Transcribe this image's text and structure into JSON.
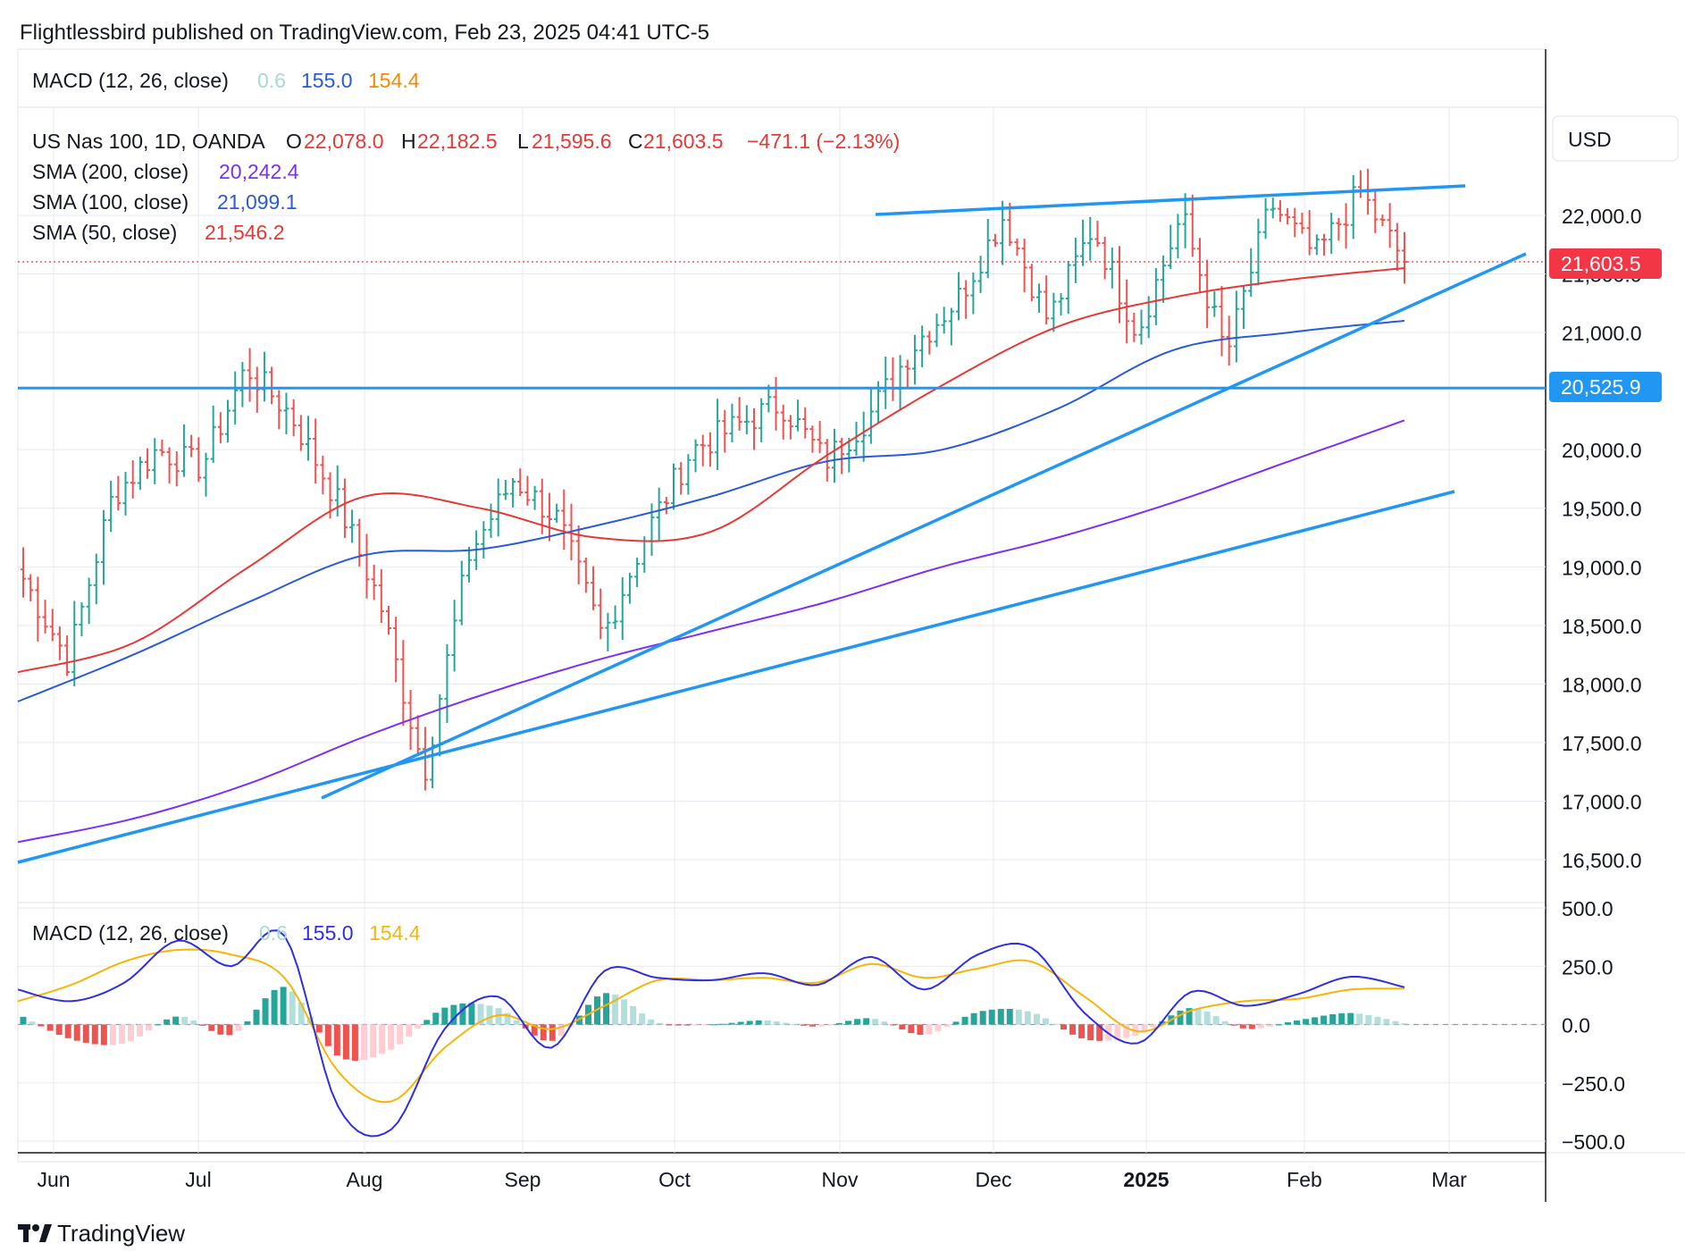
{
  "header": {
    "publisher": "Flightlessbird published on TradingView.com, Feb 23, 2025 04:41 UTC-5"
  },
  "top_macd_label": {
    "name": "MACD (12, 26, close)",
    "hist": "0.6",
    "macd": "155.0",
    "signal": "154.4"
  },
  "legend": {
    "symbol": "US Nas 100, 1D, OANDA",
    "o_label": "O",
    "o_value": "22,078.0",
    "h_label": "H",
    "h_value": "22,182.5",
    "l_label": "L",
    "l_value": "21,595.6",
    "c_label": "C",
    "c_value": "21,603.5",
    "change": "−471.1 (−2.13%)",
    "sma200_name": "SMA (200, close)",
    "sma200_value": "20,242.4",
    "sma100_name": "SMA (100, close)",
    "sma100_value": "21,099.1",
    "sma50_name": "SMA (50, close)",
    "sma50_value": "21,546.2"
  },
  "currency": "USD",
  "price_badge": "21,603.5",
  "level_badge": "20,525.9",
  "macd_label": {
    "name": "MACD (12, 26, close)",
    "hist": "0.6",
    "macd": "155.0",
    "signal": "154.4"
  },
  "footer": {
    "brand": "TradingView"
  },
  "colors": {
    "up": "#26a69a",
    "down": "#ef5350",
    "sma200": "#7b2ff7",
    "sma100": "#2a5ad7",
    "sma50": "#e53935",
    "trend": "#2196f3",
    "macd": "#2f2fe0",
    "signal": "#f5b50b",
    "hist_up_strong": "#26a69a",
    "hist_up_weak": "#b2dfdb",
    "hist_down_strong": "#ef5350",
    "hist_down_weak": "#ffcdd2"
  },
  "chart_data": {
    "type": "line",
    "price_axis": {
      "ticks": [
        "22,000.0",
        "21,500.0",
        "21,000.0",
        "20,000.0",
        "19,500.0",
        "19,000.0",
        "18,500.0",
        "18,000.0",
        "17,500.0",
        "17,000.0",
        "16,500.0"
      ],
      "tick_values": [
        22000,
        21500,
        21000,
        20000,
        19500,
        19000,
        18500,
        18000,
        17500,
        17000,
        16500
      ]
    },
    "macd_axis": {
      "ticks": [
        "500.0",
        "250.0",
        "0.0",
        "−250.0",
        "−500.0"
      ],
      "tick_values": [
        500,
        250,
        0,
        -250,
        -500
      ]
    },
    "time_axis": {
      "ticks": [
        "Jun",
        "Jul",
        "Aug",
        "Sep",
        "Oct",
        "Nov",
        "Dec",
        "2025",
        "Feb",
        "Mar"
      ],
      "bold": "2025"
    },
    "horizontal_level": 20525.9,
    "last_close": 21603.5,
    "sma200": [
      16650,
      16850,
      17150,
      17550,
      17900,
      18200,
      18450,
      18700,
      19000,
      19250,
      19550,
      19900,
      20250
    ],
    "sma100": [
      17850,
      18250,
      18700,
      19100,
      19150,
      19350,
      19600,
      19900,
      20000,
      20350,
      20850,
      21000,
      21100
    ],
    "sma50": [
      18100,
      18350,
      19000,
      19600,
      19500,
      19250,
      19300,
      19950,
      20550,
      21050,
      21300,
      21450,
      21550
    ],
    "ohlc_path": [
      18900,
      18200,
      19600,
      20000,
      19850,
      20700,
      20300,
      19600,
      18700,
      17250,
      19100,
      19750,
      19400,
      18400,
      19300,
      20000,
      20200,
      20400,
      19900,
      20300,
      20900,
      21300,
      22000,
      21100,
      21900,
      21000,
      22000,
      20800,
      22100,
      21650,
      22200,
      21600
    ],
    "macd_line": [
      150,
      100,
      180,
      360,
      250,
      380,
      -350,
      -450,
      -20,
      120,
      -100,
      230,
      200,
      190,
      220,
      170,
      290,
      150,
      300,
      330,
      50,
      -80,
      140,
      80,
      130,
      205,
      160
    ],
    "signal_line": [
      100,
      170,
      270,
      320,
      300,
      200,
      -200,
      -330,
      -100,
      40,
      -20,
      80,
      190,
      190,
      200,
      180,
      260,
      200,
      240,
      270,
      120,
      -30,
      60,
      100,
      110,
      150,
      154
    ]
  }
}
